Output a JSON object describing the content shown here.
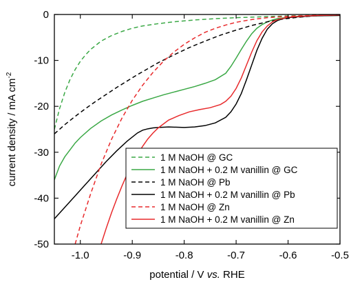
{
  "chart_data": {
    "type": "line",
    "xlabel": {
      "prefix": "potential / V ",
      "italic": "vs.",
      "suffix": " RHE"
    },
    "ylabel": {
      "main": "current density / mA cm",
      "sup": "-2"
    },
    "xlim": [
      -1.05,
      -0.5
    ],
    "ylim": [
      -50,
      0
    ],
    "xticks": [
      -1.0,
      -0.9,
      -0.8,
      -0.7,
      -0.6,
      -0.5
    ],
    "xtick_labels": [
      "-1.0",
      "-0.9",
      "-0.8",
      "-0.7",
      "-0.6",
      "-0.5"
    ],
    "yticks": [
      0,
      -10,
      -20,
      -30,
      -40,
      -50
    ],
    "ytick_labels": [
      "0",
      "-10",
      "-20",
      "-30",
      "-40",
      "-50"
    ],
    "legend_position": "bottom-right",
    "series": [
      {
        "name": "1 M NaOH @ GC",
        "color": "#3aa845",
        "dash": true,
        "x": [
          -1.05,
          -1.04,
          -1.03,
          -1.02,
          -1.01,
          -1.0,
          -0.99,
          -0.98,
          -0.96,
          -0.94,
          -0.92,
          -0.9,
          -0.88,
          -0.85,
          -0.82,
          -0.78,
          -0.74,
          -0.7,
          -0.65,
          -0.6,
          -0.55,
          -0.5
        ],
        "y": [
          -25,
          -20.5,
          -17,
          -14.2,
          -12,
          -10.2,
          -8.8,
          -7.6,
          -5.8,
          -4.6,
          -3.7,
          -3.0,
          -2.5,
          -2.0,
          -1.6,
          -1.2,
          -0.9,
          -0.7,
          -0.5,
          -0.3,
          -0.2,
          -0.1
        ]
      },
      {
        "name": "1 M NaOH + 0.2 M vanillin @ GC",
        "color": "#3aa845",
        "dash": false,
        "x": [
          -1.05,
          -1.04,
          -1.03,
          -1.02,
          -1.01,
          -1.0,
          -0.98,
          -0.96,
          -0.94,
          -0.92,
          -0.9,
          -0.88,
          -0.86,
          -0.84,
          -0.82,
          -0.8,
          -0.78,
          -0.76,
          -0.74,
          -0.72,
          -0.71,
          -0.7,
          -0.69,
          -0.68,
          -0.67,
          -0.66,
          -0.65,
          -0.64,
          -0.63,
          -0.62,
          -0.6,
          -0.58,
          -0.55,
          -0.5
        ],
        "y": [
          -36,
          -33,
          -31,
          -29.5,
          -28,
          -26.8,
          -24.8,
          -23.2,
          -21.9,
          -20.8,
          -19.8,
          -18.9,
          -18.2,
          -17.5,
          -16.9,
          -16.3,
          -15.7,
          -15.0,
          -14.2,
          -12.8,
          -11.3,
          -9.5,
          -7.6,
          -5.8,
          -4.2,
          -3.0,
          -2.2,
          -1.6,
          -1.2,
          -0.9,
          -0.6,
          -0.4,
          -0.3,
          -0.2
        ]
      },
      {
        "name": "1 M NaOH @ Pb",
        "color": "#000000",
        "dash": true,
        "x": [
          -1.05,
          -1.03,
          -1.01,
          -0.99,
          -0.97,
          -0.95,
          -0.93,
          -0.91,
          -0.89,
          -0.87,
          -0.85,
          -0.82,
          -0.79,
          -0.76,
          -0.73,
          -0.7,
          -0.67,
          -0.64,
          -0.61,
          -0.58,
          -0.55,
          -0.5
        ],
        "y": [
          -26,
          -24,
          -22.2,
          -20.5,
          -18.9,
          -17.4,
          -15.9,
          -14.5,
          -13.1,
          -11.8,
          -10.5,
          -8.8,
          -7.2,
          -5.8,
          -4.5,
          -3.4,
          -2.4,
          -1.6,
          -1.0,
          -0.6,
          -0.3,
          -0.1
        ]
      },
      {
        "name": "1 M NaOH + 0.2 M vanillin @ Pb",
        "color": "#000000",
        "dash": false,
        "x": [
          -1.05,
          -1.03,
          -1.01,
          -0.99,
          -0.97,
          -0.95,
          -0.93,
          -0.91,
          -0.89,
          -0.88,
          -0.87,
          -0.86,
          -0.85,
          -0.83,
          -0.8,
          -0.78,
          -0.76,
          -0.74,
          -0.72,
          -0.71,
          -0.7,
          -0.69,
          -0.68,
          -0.67,
          -0.66,
          -0.65,
          -0.64,
          -0.63,
          -0.62,
          -0.61,
          -0.6,
          -0.58,
          -0.55,
          -0.5
        ],
        "y": [
          -44.5,
          -42,
          -39.5,
          -37,
          -34.5,
          -32,
          -29.7,
          -27.6,
          -25.8,
          -25.2,
          -24.9,
          -24.7,
          -24.6,
          -24.5,
          -24.6,
          -24.5,
          -24.2,
          -23.6,
          -22.4,
          -21.2,
          -19.5,
          -17.2,
          -14.2,
          -11.0,
          -7.8,
          -5.2,
          -3.2,
          -2.0,
          -1.3,
          -0.9,
          -0.7,
          -0.5,
          -0.3,
          -0.2
        ]
      },
      {
        "name": "1 M NaOH @ Zn",
        "color": "#e8292b",
        "dash": true,
        "x": [
          -1.01,
          -1.0,
          -0.98,
          -0.96,
          -0.94,
          -0.92,
          -0.9,
          -0.88,
          -0.86,
          -0.84,
          -0.82,
          -0.8,
          -0.78,
          -0.76,
          -0.74,
          -0.72,
          -0.7,
          -0.67,
          -0.64,
          -0.6,
          -0.55,
          -0.5
        ],
        "y": [
          -50,
          -46,
          -39,
          -32.6,
          -27.2,
          -22.6,
          -18.7,
          -15.4,
          -12.6,
          -10.2,
          -8.2,
          -6.5,
          -5.1,
          -3.9,
          -3.0,
          -2.3,
          -1.7,
          -1.1,
          -0.7,
          -0.4,
          -0.2,
          -0.1
        ]
      },
      {
        "name": "1 M NaOH + 0.2 M vanillin @ Zn",
        "color": "#e8292b",
        "dash": false,
        "x": [
          -0.96,
          -0.95,
          -0.94,
          -0.93,
          -0.92,
          -0.91,
          -0.9,
          -0.89,
          -0.88,
          -0.87,
          -0.86,
          -0.85,
          -0.83,
          -0.81,
          -0.79,
          -0.77,
          -0.75,
          -0.73,
          -0.72,
          -0.71,
          -0.7,
          -0.69,
          -0.68,
          -0.67,
          -0.66,
          -0.65,
          -0.64,
          -0.63,
          -0.62,
          -0.6,
          -0.57,
          -0.54,
          -0.5
        ],
        "y": [
          -50,
          -46.5,
          -43.2,
          -40.2,
          -37.4,
          -34.8,
          -32.5,
          -30.5,
          -28.7,
          -27.1,
          -25.8,
          -24.7,
          -23.0,
          -22.0,
          -21.2,
          -20.7,
          -20.3,
          -19.6,
          -18.9,
          -17.8,
          -16.1,
          -13.8,
          -11.0,
          -8.2,
          -5.7,
          -3.8,
          -2.5,
          -1.6,
          -1.1,
          -0.6,
          -0.35,
          -0.2,
          -0.1
        ]
      }
    ]
  }
}
